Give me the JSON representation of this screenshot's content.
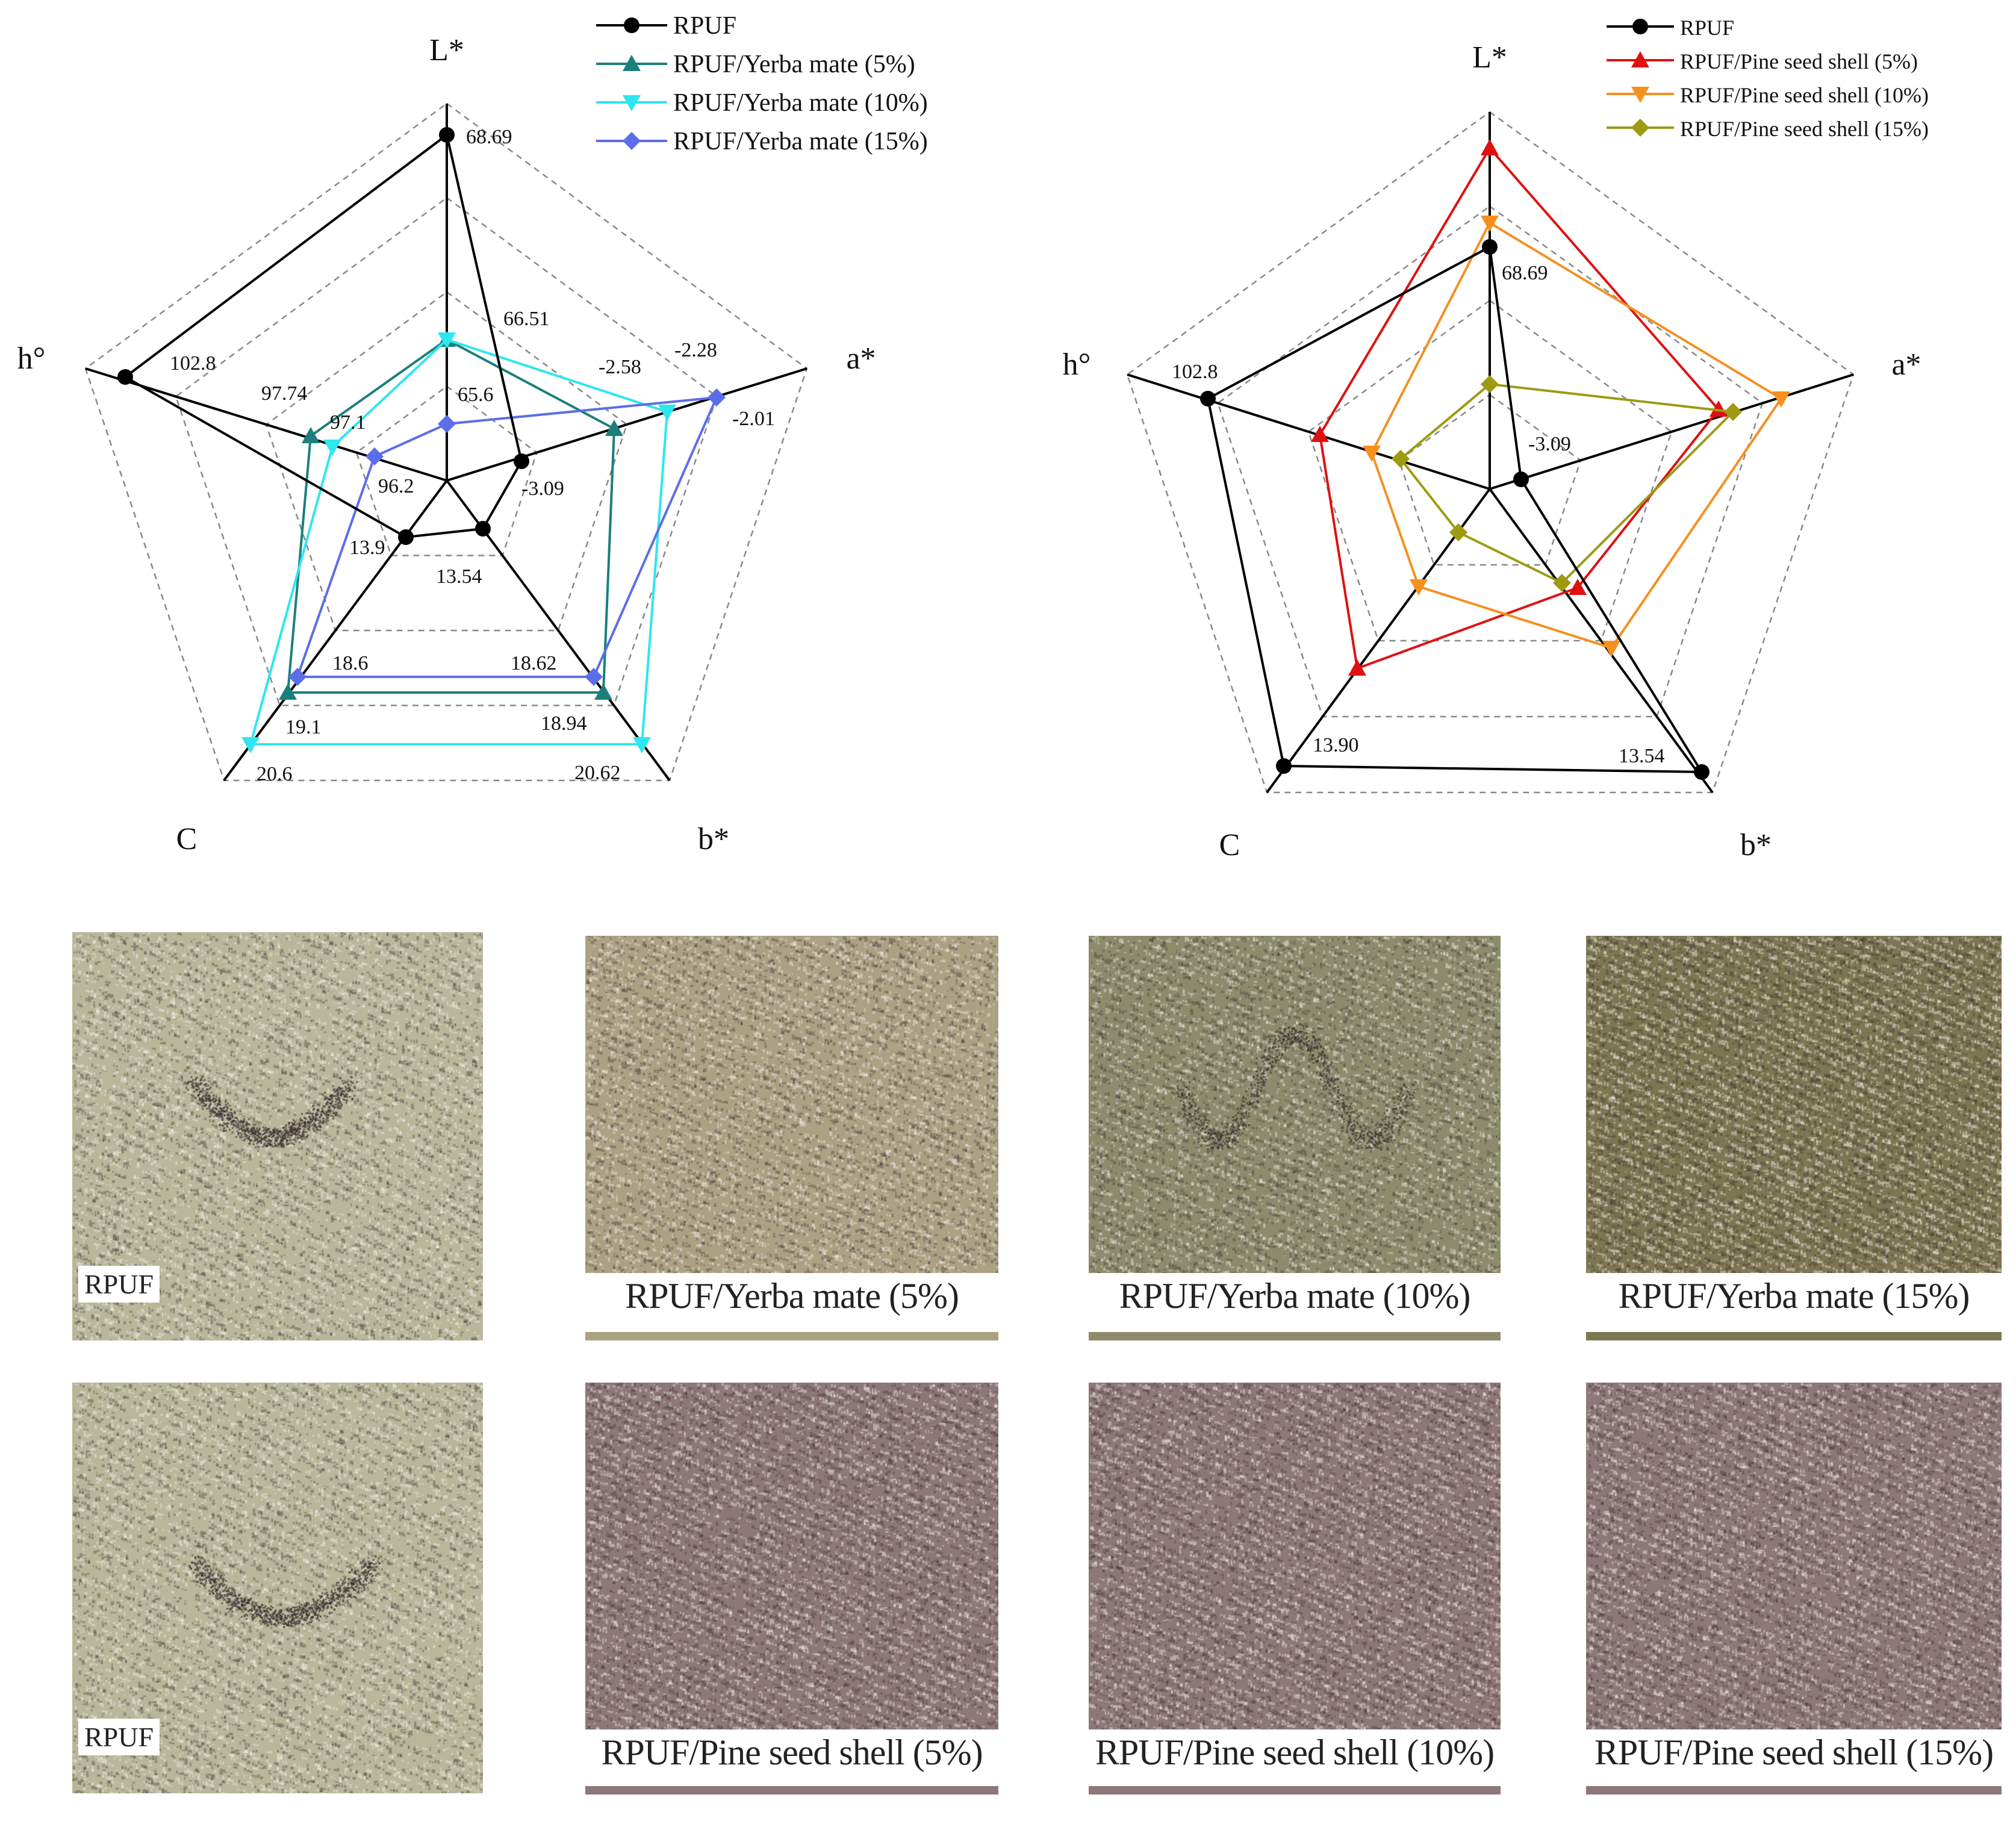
{
  "chart_data": [
    {
      "type": "radar",
      "axes": [
        "L*",
        "a*",
        "b*",
        "C",
        "h°"
      ],
      "series": [
        {
          "name": "RPUF",
          "color": "#000000",
          "marker": "circle",
          "values": [
            68.69,
            -3.09,
            13.54,
            13.9,
            102.8
          ]
        },
        {
          "name": "RPUF/Yerba mate (5%)",
          "color": "#1b7f7b",
          "marker": "triangle-up",
          "values": [
            66.51,
            -2.58,
            18.94,
            19.1,
            97.74
          ]
        },
        {
          "name": "RPUF/Yerba mate (10%)",
          "color": "#2ee6f0",
          "marker": "triangle-down",
          "values": [
            66.51,
            -2.28,
            20.62,
            20.6,
            97.1
          ]
        },
        {
          "name": "RPUF/Yerba mate (15%)",
          "color": "#5b6ee8",
          "marker": "diamond",
          "values": [
            65.6,
            -2.01,
            18.62,
            18.6,
            96.2
          ]
        }
      ],
      "point_labels": [
        "68.69",
        "66.51",
        "65.6",
        "-2.28",
        "-2.58",
        "-2.01",
        "-3.09",
        "20.62",
        "18.94",
        "18.62",
        "13.54",
        "20.6",
        "19.1",
        "18.6",
        "13.9",
        "102.8",
        "97.74",
        "97.1",
        "96.2"
      ],
      "legend": "top-right",
      "grid": true
    },
    {
      "type": "radar",
      "axes": [
        "L*",
        "a*",
        "b*",
        "C",
        "h°"
      ],
      "series": [
        {
          "name": "RPUF",
          "color": "#000000",
          "marker": "circle"
        },
        {
          "name": "RPUF/Pine seed shell (5%)",
          "color": "#e01010",
          "marker": "triangle-up"
        },
        {
          "name": "RPUF/Pine seed shell (10%)",
          "color": "#f5901f",
          "marker": "triangle-down"
        },
        {
          "name": "RPUF/Pine seed shell (15%)",
          "color": "#9e9a14",
          "marker": "diamond"
        }
      ],
      "point_labels": [
        "68.69",
        "-3.09",
        "13.54",
        "13.90",
        "102.8"
      ],
      "legend": "top-right",
      "grid": true
    }
  ],
  "photos": {
    "row1": [
      "RPUF",
      "RPUF/Yerba mate (5%)",
      "RPUF/Yerba mate (10%)",
      "RPUF/Yerba mate (15%)"
    ],
    "row2": [
      "RPUF",
      "RPUF/Pine seed shell (5%)",
      "RPUF/Pine seed shell (10%)",
      "RPUF/Pine seed shell (15%)"
    ]
  },
  "colors": {
    "photo_plain": "#b9b69a",
    "photo_yerba_5": "#aba183",
    "photo_yerba_10": "#8e8a6c",
    "photo_yerba_15": "#7d7652",
    "photo_pine": "#8e7778",
    "photo_speckle": "#3a2e30"
  }
}
